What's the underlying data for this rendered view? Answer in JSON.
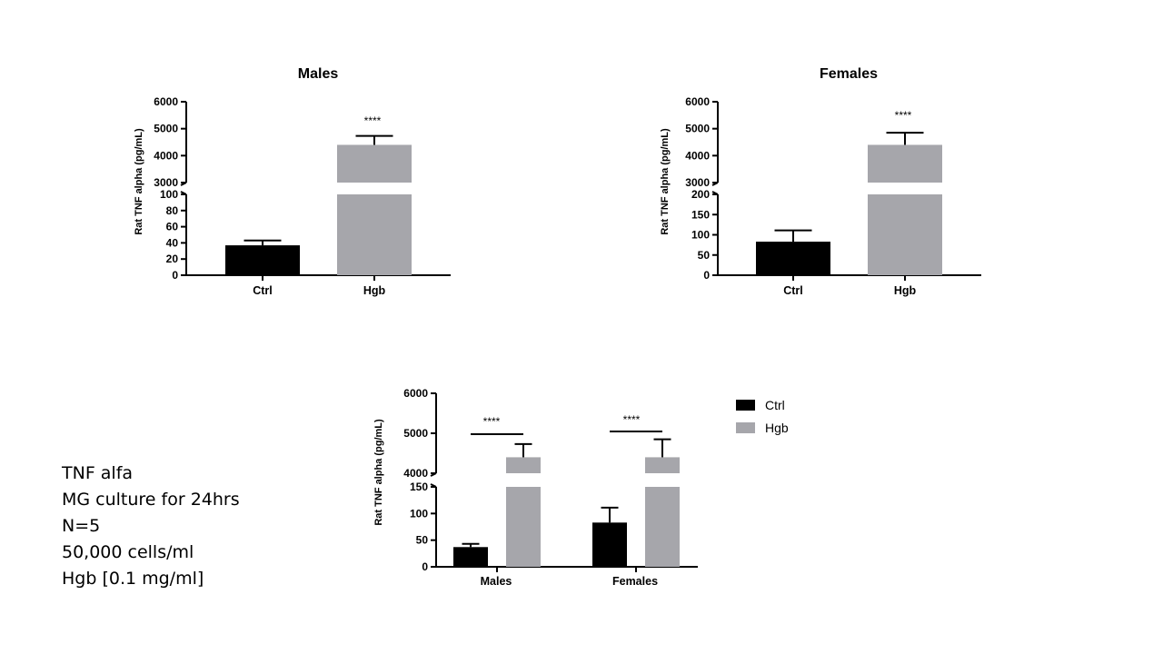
{
  "chart_data": [
    {
      "type": "bar",
      "title": "Males",
      "ylabel": "Rat TNF alpha (pg/mL)",
      "xlabel": "",
      "categories": [
        "Ctrl",
        "Hgb"
      ],
      "values": [
        37,
        4400
      ],
      "errors": [
        6,
        330
      ],
      "colors": [
        "#000000",
        "#a6a6ab"
      ],
      "ylim_lower": [
        0,
        100
      ],
      "ylim_upper": [
        3000,
        6000
      ],
      "yticks_lower": [
        0,
        20,
        40,
        60,
        80,
        100
      ],
      "yticks_upper": [
        3000,
        4000,
        5000,
        6000
      ],
      "significance": [
        "",
        "****"
      ]
    },
    {
      "type": "bar",
      "title": "Females",
      "ylabel": "Rat TNF alpha (pg/mL)",
      "xlabel": "",
      "categories": [
        "Ctrl",
        "Hgb"
      ],
      "values": [
        83,
        4400
      ],
      "errors": [
        28,
        450
      ],
      "colors": [
        "#000000",
        "#a6a6ab"
      ],
      "ylim_lower": [
        0,
        200
      ],
      "ylim_upper": [
        3000,
        6000
      ],
      "yticks_lower": [
        0,
        50,
        100,
        150,
        200
      ],
      "yticks_upper": [
        3000,
        4000,
        5000,
        6000
      ],
      "significance": [
        "",
        "****"
      ]
    },
    {
      "type": "bar",
      "title": "",
      "ylabel": "Rat TNF alpha (pg/mL)",
      "xlabel": "",
      "categories": [
        "Males",
        "Females"
      ],
      "series": [
        {
          "name": "Ctrl",
          "color": "#000000",
          "values": [
            37,
            83
          ],
          "errors": [
            6,
            28
          ]
        },
        {
          "name": "Hgb",
          "color": "#a6a6ab",
          "values": [
            4400,
            4400
          ],
          "errors": [
            330,
            450
          ]
        }
      ],
      "ylim_lower": [
        0,
        150
      ],
      "ylim_upper": [
        4000,
        6000
      ],
      "yticks_lower": [
        0,
        50,
        100,
        150
      ],
      "yticks_upper": [
        4000,
        5000,
        6000
      ],
      "significance": [
        "****",
        "****"
      ],
      "legend": "right"
    }
  ],
  "notes": [
    "TNF alfa",
    "MG culture for 24hrs",
    "N=5",
    "50,000 cells/ml",
    "Hgb [0.1 mg/ml]"
  ]
}
